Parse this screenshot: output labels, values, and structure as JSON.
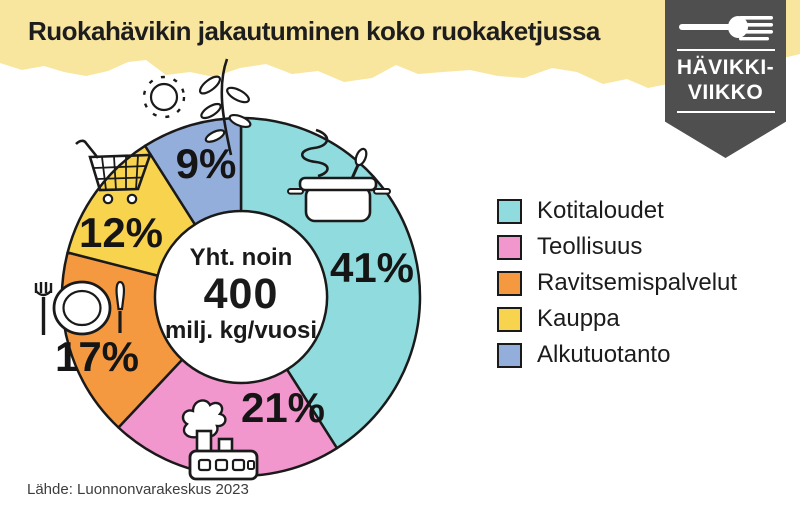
{
  "header": {
    "title": "Ruokahävikin jakautuminen koko ruokaketjussa"
  },
  "badge": {
    "line1": "HÄVIKKI-",
    "line2": "VIIKKO"
  },
  "chart_data": {
    "type": "pie",
    "subtype": "donut",
    "title": "Ruokahävikin jakautuminen koko ruokaketjussa",
    "unit": "%",
    "direction": "clockwise",
    "start_angle_deg": 0,
    "legend_position": "right",
    "center_label": {
      "line1": "Yht. noin",
      "line2": "400",
      "line3": "milj. kg/vuosi"
    },
    "segments": [
      {
        "label": "Kotitaloudet",
        "value": 41,
        "color": "#8FDBDD",
        "icon": "cooking-pot-icon"
      },
      {
        "label": "Teollisuus",
        "value": 21,
        "color": "#F197CE",
        "icon": "factory-icon"
      },
      {
        "label": "Ravitsemispalvelut",
        "value": 17,
        "color": "#F4993F",
        "icon": "plate-cutlery-icon"
      },
      {
        "label": "Kauppa",
        "value": 12,
        "color": "#F8D34E",
        "icon": "shopping-cart-icon"
      },
      {
        "label": "Alkutuotanto",
        "value": 9,
        "color": "#94AEDB",
        "icon": "plant-sprig-icon"
      }
    ]
  },
  "source": "Lähde: Luonnonvarakeskus 2023",
  "colors": {
    "band": "#F8E59E",
    "badge_bg": "#4F4F4F",
    "outline": "#1a1a1a",
    "text": "#1A1A1A"
  },
  "icons": {
    "badge": "fork-icon",
    "decorative": [
      "sun-icon",
      "plant-sprig-icon",
      "cooking-pot-icon",
      "shopping-cart-icon",
      "plate-cutlery-icon",
      "factory-icon"
    ]
  }
}
